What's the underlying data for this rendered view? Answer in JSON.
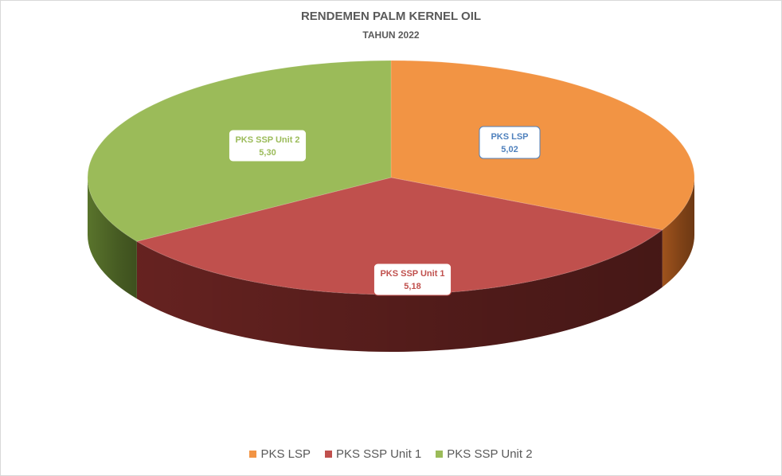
{
  "chart_data": {
    "type": "pie",
    "title": "RENDEMEN PALM KERNEL OIL",
    "subtitle": "TAHUN 2022",
    "categories": [
      "PKS LSP",
      "PKS SSP Unit 1",
      "PKS SSP Unit 2"
    ],
    "values": [
      5.02,
      5.18,
      5.3
    ],
    "value_labels": [
      "5,02",
      "5,18",
      "5,30"
    ],
    "colors": [
      "#F29444",
      "#C0504D",
      "#9BBB59"
    ],
    "side_colors": [
      "#A8571E",
      "#6B2422",
      "#5E7A2E"
    ],
    "label_colors": [
      "#4F81BD",
      "#C0504D",
      "#9BBB59"
    ],
    "legend_position": "bottom",
    "style": "3d"
  }
}
